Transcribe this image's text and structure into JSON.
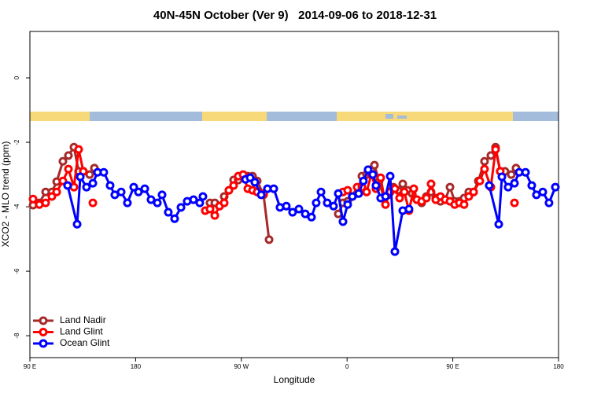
{
  "chart_data": {
    "type": "line",
    "title": "40N-45N October (Ver 9)   2014-09-06 to 2018-12-31",
    "xlabel": "Longitude",
    "ylabel": "XCO2 - MLO trend (ppm)",
    "xlim": [
      90,
      540
    ],
    "ylim": [
      -8.68,
      1.44
    ],
    "xticks": [
      {
        "value": 90,
        "label": "90 E"
      },
      {
        "value": 180,
        "label": "180"
      },
      {
        "value": 270,
        "label": "90 W"
      },
      {
        "value": 360,
        "label": "0"
      },
      {
        "value": 450,
        "label": "90 E"
      },
      {
        "value": 540,
        "label": "180"
      }
    ],
    "yticks": [
      0,
      -2,
      -4,
      -6,
      -8
    ],
    "legend": "bottomleft",
    "series": [
      {
        "name": "Land Nadir",
        "color": "#a52a2a",
        "x": [
          92.7,
          98.0,
          103.4,
          108.7,
          112.8,
          118.1,
          122.8,
          127.5,
          131.5,
          135.5,
          140.9,
          144.9,
          null,
          243.3,
          247.4,
          251.4,
          255.4,
          259.4,
          263.4,
          267.4,
          271.5,
          275.5,
          279.5,
          283.5,
          288.9,
          293.6,
          null,
          352.5,
          356.5,
          360.5,
          364.5,
          368.6,
          372.6,
          376.6,
          380.6,
          383.3,
          387.3,
          391.3,
          395.3,
          399.4,
          403.4,
          407.4,
          411.4,
          415.4,
          419.4,
          423.5,
          427.5,
          431.5,
          435.5,
          439.5,
          443.5,
          447.6,
          451.6,
          455.6,
          459.6,
          463.6,
          467.7,
          471.7,
          477.0,
          482.4,
          486.4,
          490.4,
          494.4,
          499.8,
          503.8
        ],
        "values": [
          -3.95,
          -3.88,
          -3.54,
          -3.54,
          -3.22,
          -2.59,
          -2.41,
          -2.15,
          -2.9,
          -2.9,
          -3.0,
          -2.8,
          null,
          -3.88,
          -3.88,
          -3.98,
          -3.68,
          -3.49,
          -3.17,
          -3.17,
          -3.05,
          -3.05,
          -3.05,
          -3.2,
          -3.63,
          -5.02,
          null,
          -4.22,
          -3.88,
          -3.83,
          -3.68,
          -3.59,
          -3.05,
          -3.0,
          -2.85,
          -2.71,
          -3.2,
          -3.73,
          -3.63,
          -3.39,
          -3.49,
          -3.29,
          -3.49,
          -3.59,
          -3.78,
          -3.88,
          -3.68,
          -3.54,
          -3.73,
          -3.83,
          -3.78,
          -3.39,
          -3.83,
          -3.83,
          -3.73,
          -3.54,
          -3.54,
          -3.2,
          -2.59,
          -2.41,
          -2.15,
          -2.9,
          -2.9,
          -3.0,
          -2.8
        ]
      },
      {
        "name": "Land Glint",
        "color": "#ff0000",
        "x": [
          92.7,
          98.0,
          103.4,
          108.7,
          112.8,
          118.1,
          122.8,
          127.5,
          131.5,
          135.5,
          null,
          143.6,
          null,
          239.3,
          243.3,
          247.4,
          251.4,
          255.4,
          259.4,
          263.4,
          267.4,
          271.5,
          275.5,
          279.5,
          283.5,
          288.9,
          null,
          356.5,
          360.5,
          364.5,
          368.6,
          372.6,
          376.6,
          380.6,
          384.6,
          388.6,
          392.7,
          396.7,
          400.7,
          404.7,
          408.7,
          412.7,
          416.8,
          419.4,
          423.5,
          427.5,
          431.5,
          435.5,
          439.5,
          443.5,
          447.6,
          451.6,
          455.6,
          459.6,
          463.6,
          467.7,
          473.0,
          477.0,
          482.4,
          486.4,
          490.4,
          null,
          502.5
        ],
        "values": [
          -3.76,
          -3.93,
          -3.88,
          -3.68,
          -3.54,
          -3.2,
          -2.83,
          -3.39,
          -2.22,
          -2.9,
          null,
          -3.88,
          null,
          -4.12,
          -4.07,
          -4.27,
          -3.98,
          -3.88,
          -3.49,
          -3.34,
          -3.05,
          -3.0,
          -3.44,
          -3.49,
          -3.54,
          -3.59,
          null,
          -3.54,
          -3.49,
          -3.68,
          -3.39,
          -3.39,
          -3.54,
          -3.0,
          -3.44,
          -3.1,
          -3.93,
          -3.54,
          -3.44,
          -3.73,
          -3.54,
          -4.12,
          -3.44,
          -3.78,
          -3.83,
          -3.73,
          -3.29,
          -3.78,
          -3.68,
          -3.78,
          -3.83,
          -3.93,
          -3.88,
          -3.93,
          -3.68,
          -3.54,
          -3.2,
          -2.83,
          -3.39,
          -2.22,
          -2.9,
          null,
          -3.88
        ]
      },
      {
        "name": "Ocean Glint",
        "color": "#0000ff",
        "x": [
          122.1,
          130.2,
          132.9,
          138.2,
          143.6,
          147.6,
          152.9,
          158.3,
          162.3,
          167.7,
          173.0,
          178.4,
          182.4,
          187.8,
          193.1,
          198.5,
          202.5,
          207.8,
          213.2,
          218.6,
          223.9,
          229.3,
          234.6,
          237.3,
          null,
          273.5,
          277.5,
          281.5,
          286.9,
          292.2,
          297.6,
          302.9,
          308.3,
          313.6,
          319.0,
          324.4,
          329.7,
          333.7,
          337.8,
          343.1,
          348.5,
          352.5,
          356.5,
          360.5,
          364.5,
          369.9,
          373.9,
          377.9,
          381.9,
          384.6,
          388.6,
          392.7,
          396.7,
          400.7,
          407.4,
          412.7,
          null,
          481.0,
          489.1,
          491.8,
          497.1,
          502.5,
          506.5,
          511.9,
          517.2,
          521.2,
          526.6,
          531.9,
          537.3
        ],
        "values": [
          -3.34,
          -4.54,
          -3.07,
          -3.39,
          -3.27,
          -2.93,
          -2.93,
          -3.34,
          -3.63,
          -3.54,
          -3.88,
          -3.39,
          -3.54,
          -3.44,
          -3.78,
          -3.88,
          -3.63,
          -4.17,
          -4.37,
          -4.02,
          -3.83,
          -3.78,
          -3.88,
          -3.68,
          null,
          -3.15,
          -3.1,
          -3.24,
          -3.63,
          -3.44,
          -3.44,
          -4.02,
          -3.98,
          -4.17,
          -4.07,
          -4.22,
          -4.32,
          -3.88,
          -3.54,
          -3.88,
          -3.98,
          -3.59,
          -4.46,
          -3.93,
          -3.68,
          -3.59,
          -3.2,
          -2.85,
          -3.0,
          -3.34,
          -3.73,
          -3.68,
          -3.05,
          -5.39,
          -4.12,
          -4.07,
          null,
          -3.34,
          -4.54,
          -3.07,
          -3.39,
          -3.27,
          -2.93,
          -2.93,
          -3.34,
          -3.63,
          -3.54,
          -3.88,
          -3.39
        ]
      }
    ]
  }
}
